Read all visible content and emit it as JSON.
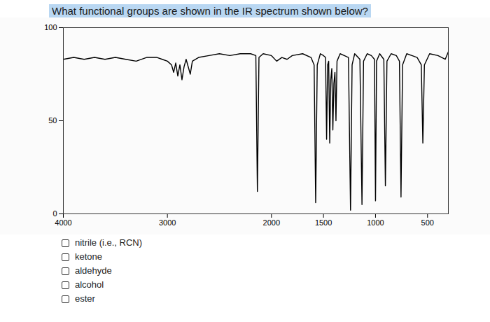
{
  "chart_data": {
    "type": "line",
    "title": "What functional groups are shown in the IR spectrum shown below?",
    "x": [
      4000,
      3900,
      3800,
      3700,
      3600,
      3500,
      3400,
      3300,
      3200,
      3100,
      3050,
      3000,
      2960,
      2940,
      2920,
      2900,
      2880,
      2860,
      2840,
      2820,
      2780,
      2760,
      2700,
      2600,
      2500,
      2400,
      2300,
      2200,
      2150,
      2135,
      2120,
      2080,
      2000,
      1950,
      1900,
      1850,
      1800,
      1700,
      1620,
      1590,
      1575,
      1560,
      1530,
      1500,
      1480,
      1470,
      1460,
      1450,
      1440,
      1430,
      1420,
      1410,
      1400,
      1390,
      1380,
      1370,
      1340,
      1300,
      1260,
      1240,
      1225,
      1200,
      1150,
      1130,
      1115,
      1080,
      1040,
      1010,
      1000,
      990,
      960,
      920,
      905,
      890,
      850,
      800,
      770,
      755,
      740,
      700,
      650,
      600,
      560,
      545,
      530,
      480,
      400,
      330,
      300
    ],
    "values": [
      83,
      84,
      83,
      84,
      83,
      84,
      83,
      82,
      84,
      84,
      83,
      82,
      80,
      76,
      81,
      74,
      80,
      72,
      79,
      83,
      75,
      82,
      84,
      85,
      86,
      85,
      86,
      86,
      85,
      12,
      84,
      86,
      85,
      82,
      84,
      83,
      85,
      86,
      84,
      80,
      6,
      80,
      86,
      85,
      84,
      40,
      80,
      82,
      38,
      72,
      78,
      45,
      70,
      76,
      50,
      82,
      86,
      85,
      84,
      2,
      80,
      86,
      83,
      5,
      82,
      86,
      85,
      83,
      7,
      82,
      86,
      83,
      15,
      82,
      86,
      85,
      82,
      9,
      80,
      86,
      85,
      84,
      80,
      38,
      80,
      86,
      85,
      83,
      87
    ],
    "color": "#000000",
    "xlim": [
      4000,
      300
    ],
    "xticks": [
      4000,
      3000,
      2000,
      1500,
      1000,
      500
    ],
    "ylim": [
      0,
      100
    ],
    "yticks": [
      0,
      50,
      100
    ],
    "grid": false,
    "annotations": [
      "nitrile (i.e., RCN)",
      "ketone",
      "aldehyde",
      "alcohol",
      "ester"
    ]
  }
}
